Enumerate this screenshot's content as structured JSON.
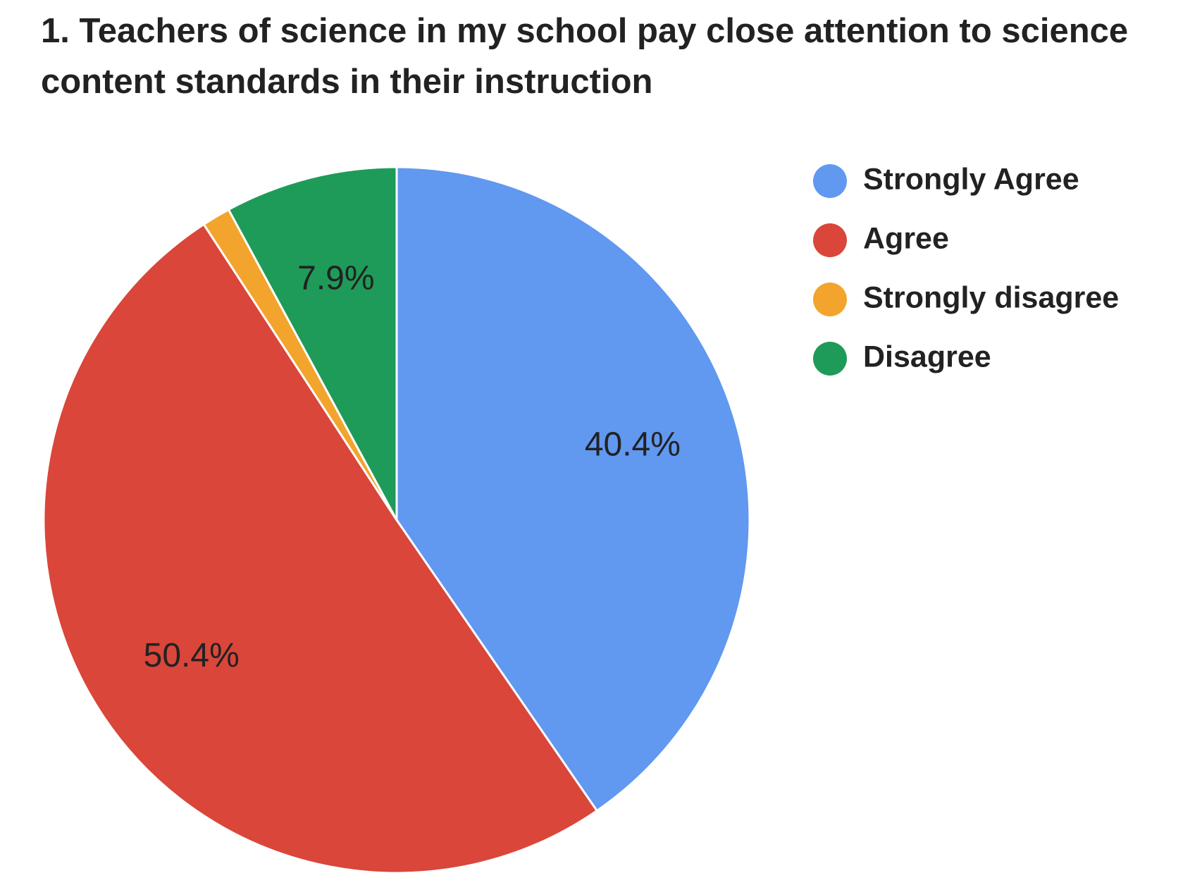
{
  "chart_data": {
    "type": "pie",
    "title": "1. Teachers of science in my school pay close attention to science content standards in their instruction",
    "categories": [
      "Strongly Agree",
      "Agree",
      "Strongly disagree",
      "Disagree"
    ],
    "values": [
      40.4,
      50.4,
      1.3,
      7.9
    ],
    "value_labels": [
      "40.4%",
      "50.4%",
      null,
      "7.9%"
    ],
    "colors": [
      "#6198f0",
      "#da463a",
      "#f3a42c",
      "#1f9b59"
    ],
    "legend": "right"
  }
}
